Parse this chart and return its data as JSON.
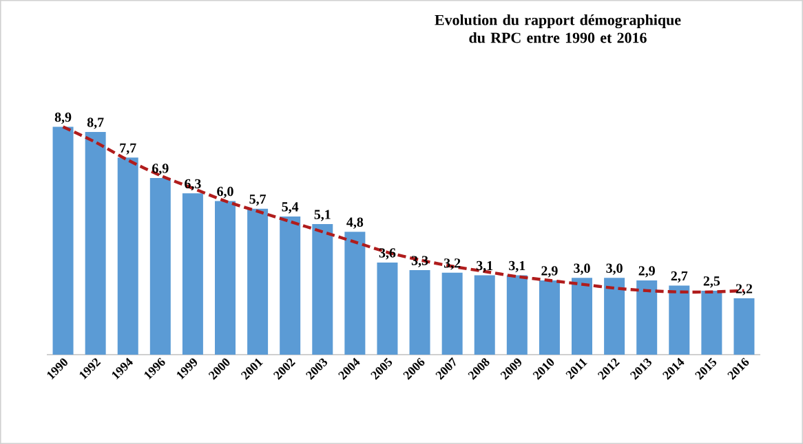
{
  "chart_data": {
    "type": "bar",
    "title": "Evolution du rapport démographique du RPC entre 1990 et 2016",
    "categories": [
      "1990",
      "1992",
      "1994",
      "1996",
      "1999",
      "2000",
      "2001",
      "2002",
      "2003",
      "2004",
      "2005",
      "2006",
      "2007",
      "2008",
      "2009",
      "2010",
      "2011",
      "2012",
      "2013",
      "2014",
      "2015",
      "2016"
    ],
    "series": [
      {
        "color": "#5b9bd5",
        "values": [
          8.9,
          8.7,
          7.7,
          6.9,
          6.3,
          6.0,
          5.7,
          5.4,
          5.1,
          4.8,
          3.6,
          3.3,
          3.2,
          3.1,
          3.1,
          2.9,
          3.0,
          3.0,
          2.9,
          2.7,
          2.5,
          2.2
        ],
        "value_labels": [
          "8,9",
          "8,7",
          "7,7",
          "6,9",
          "6,3",
          "6,0",
          "5,7",
          "5,4",
          "5,1",
          "4,8",
          "3,6",
          "3,3",
          "3,2",
          "3,1",
          "3,1",
          "2,9",
          "3,0",
          "3,0",
          "2,9",
          "2,7",
          "2,5",
          "2,2"
        ]
      },
      {
        "type": "line",
        "color": "#b01c1c",
        "line_style": "dashed",
        "values": [
          8.9,
          8.3,
          7.6,
          7.0,
          6.5,
          6.0,
          5.6,
          5.2,
          4.8,
          4.4,
          4.0,
          3.7,
          3.45,
          3.25,
          3.05,
          2.9,
          2.75,
          2.6,
          2.5,
          2.45,
          2.45,
          2.5
        ]
      }
    ]
  }
}
